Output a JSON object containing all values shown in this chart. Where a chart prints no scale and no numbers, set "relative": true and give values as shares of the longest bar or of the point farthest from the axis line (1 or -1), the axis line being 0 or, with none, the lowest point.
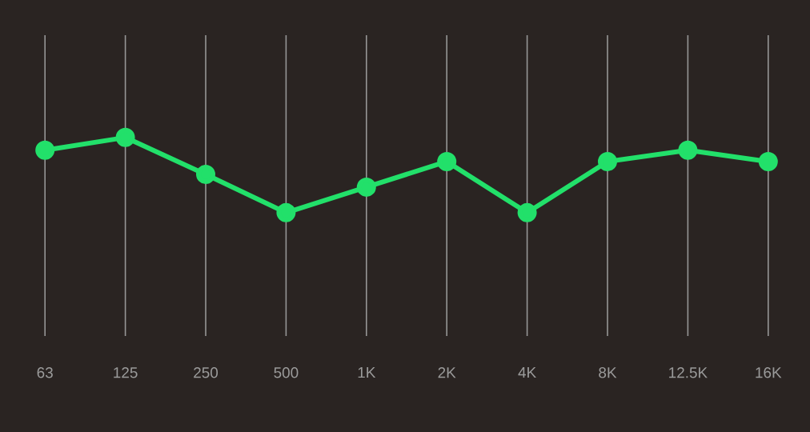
{
  "chart_data": {
    "type": "line",
    "relative": true,
    "categories": [
      "63",
      "125",
      "250",
      "500",
      "1K",
      "2K",
      "4K",
      "8K",
      "12.5K",
      "16K"
    ],
    "series": [
      {
        "color": "#22e06a",
        "values": [
          0.83,
          1,
          0.51,
          0,
          0.34,
          0.68,
          0,
          0.68,
          0.83,
          0.68
        ]
      }
    ],
    "grid": "x",
    "marker": "circle",
    "line_style": "solid"
  }
}
